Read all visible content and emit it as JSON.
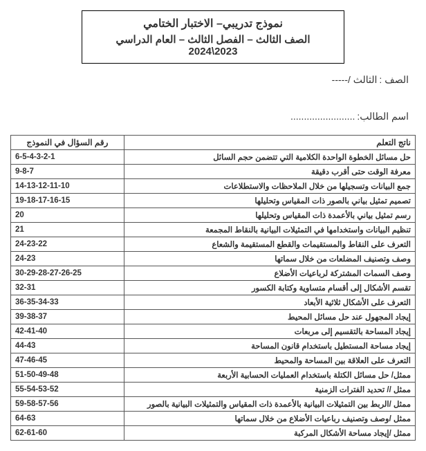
{
  "header": {
    "title": "نموذج تدريبي– الاختبار الختامي",
    "subtitle": "الصف الثالث – الفصل الثالث – العام الدراسي 2023\\2024"
  },
  "info": {
    "class_label": "الصف :",
    "class_value": "الثالث /-----",
    "student_label": "اسم الطالب:",
    "student_value": "........................"
  },
  "table": {
    "headers": {
      "outcome": "ناتج التعلم",
      "question_num": "رقم السؤال في النموذج"
    },
    "rows": [
      {
        "outcome": "حل مسائل الخطوة الواحدة الكلامية التي تتضمن حجم السائل",
        "q": "6-5-4-3-2-1"
      },
      {
        "outcome": "معرفة الوقت حتى أقرب دقيقة",
        "q": "9-8-7"
      },
      {
        "outcome": "جمع البيانات وتسجيلها من خلال الملاحظات والاستطلاعات",
        "q": "14-13-12-11-10"
      },
      {
        "outcome": "تصميم تمثيل بياني بالصور ذات المقياس وتحليلها",
        "q": "19-18-17-16-15"
      },
      {
        "outcome": "رسم تمثيل بياني بالأعمدة ذات المقياس وتحليلها",
        "q": "20"
      },
      {
        "outcome": "تنظيم البيانات واستخدامها في التمثيلات البيانية بالنقاط المجمعة",
        "q": "21"
      },
      {
        "outcome": "التعرف على النقاط والمستقيمات والقطع المستقيمة والشعاع",
        "q": "24-23-22"
      },
      {
        "outcome": "وصف وتصنيف المضلعات من خلال سماتها",
        "q": "24-23"
      },
      {
        "outcome": "وصف السمات المشتركة لرباعيات الأضلاع",
        "q": "30-29-28-27-26-25"
      },
      {
        "outcome": "تقسم الأشكال إلى أقسام متساوية وكتابة الكسور",
        "q": "32-31"
      },
      {
        "outcome": "التعرف على الأشكال ثلاثية الأبعاد",
        "q": "36-35-34-33"
      },
      {
        "outcome": "إيجاد المجهول عند حل مسائل المحيط",
        "q": "39-38-37"
      },
      {
        "outcome": "إيجاد المساحة بالتقسيم إلى مربعات",
        "q": "42-41-40"
      },
      {
        "outcome": "إيجاد مساحة المستطيل باستخدام قانون المساحة",
        "q": "44-43"
      },
      {
        "outcome": "التعرف على العلاقة بين المساحة والمحيط",
        "q": "47-46-45"
      },
      {
        "outcome": "ممثل/ حل  مسائل الكتلة باستخدام العمليات الحسابية الأربعة",
        "q": "51-50-49-48"
      },
      {
        "outcome": "ممثل //  تحديد الفترات الزمنية",
        "q": "55-54-53-52"
      },
      {
        "outcome": "ممثل /الربط بين التمثيلات البيانية بالأعمدة ذات المقياس والتمثيلات البيانية بالصور",
        "q": "59-58-57-56"
      },
      {
        "outcome": "ممثل /وصف وتصنيف رباعيات الأضلاع من خلال سماتها",
        "q": "64-63"
      },
      {
        "outcome": "ممثل /إيجاد مساحة الأشكال المركبة",
        "q": "62-61-60"
      }
    ]
  }
}
